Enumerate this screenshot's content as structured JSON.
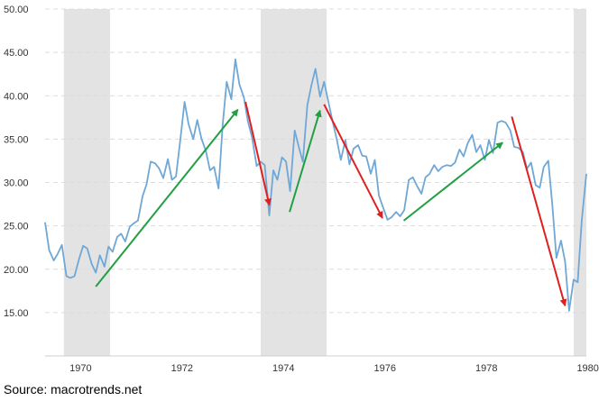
{
  "chart_data": {
    "type": "line",
    "x_unit": "year",
    "xlim": [
      1969.3,
      1979.97
    ],
    "ylim": [
      10,
      50
    ],
    "grid": true,
    "x_ticks": [
      {
        "value": 1970,
        "label": "1970"
      },
      {
        "value": 1972,
        "label": "1972"
      },
      {
        "value": 1974,
        "label": "1974"
      },
      {
        "value": 1976,
        "label": "1976"
      },
      {
        "value": 1978,
        "label": "1978"
      },
      {
        "value": 1980,
        "label": "1980"
      }
    ],
    "y_ticks": [
      {
        "value": 15,
        "label": "15.00"
      },
      {
        "value": 20,
        "label": "20.00"
      },
      {
        "value": 25,
        "label": "25.00"
      },
      {
        "value": 30,
        "label": "30.00"
      },
      {
        "value": 35,
        "label": "35.00"
      },
      {
        "value": 40,
        "label": "40.00"
      },
      {
        "value": 45,
        "label": "45.00"
      },
      {
        "value": 50,
        "label": "50.00"
      }
    ],
    "shaded_periods": [
      {
        "start": 1969.67,
        "end": 1970.58
      },
      {
        "start": 1973.55,
        "end": 1974.85
      },
      {
        "start": 1979.72,
        "end": 1979.97
      }
    ],
    "series": [
      {
        "color": "#6fa7d6",
        "points": [
          [
            1969.3,
            25.4
          ],
          [
            1969.38,
            22.2
          ],
          [
            1969.47,
            21.0
          ],
          [
            1969.55,
            21.8
          ],
          [
            1969.63,
            22.8
          ],
          [
            1969.72,
            19.2
          ],
          [
            1969.8,
            19.0
          ],
          [
            1969.88,
            19.2
          ],
          [
            1969.97,
            21.2
          ],
          [
            1970.05,
            22.7
          ],
          [
            1970.13,
            22.4
          ],
          [
            1970.22,
            20.6
          ],
          [
            1970.3,
            19.6
          ],
          [
            1970.38,
            21.6
          ],
          [
            1970.47,
            20.3
          ],
          [
            1970.55,
            22.6
          ],
          [
            1970.63,
            22.0
          ],
          [
            1970.72,
            23.7
          ],
          [
            1970.8,
            24.1
          ],
          [
            1970.88,
            23.2
          ],
          [
            1970.97,
            24.9
          ],
          [
            1971.05,
            25.3
          ],
          [
            1971.13,
            25.6
          ],
          [
            1971.22,
            28.4
          ],
          [
            1971.3,
            29.8
          ],
          [
            1971.38,
            32.4
          ],
          [
            1971.47,
            32.2
          ],
          [
            1971.55,
            31.6
          ],
          [
            1971.63,
            30.5
          ],
          [
            1971.72,
            32.7
          ],
          [
            1971.8,
            30.3
          ],
          [
            1971.88,
            30.7
          ],
          [
            1971.97,
            35.1
          ],
          [
            1972.05,
            39.3
          ],
          [
            1972.13,
            36.7
          ],
          [
            1972.22,
            35.0
          ],
          [
            1972.3,
            37.2
          ],
          [
            1972.38,
            35.1
          ],
          [
            1972.47,
            33.6
          ],
          [
            1972.55,
            31.4
          ],
          [
            1972.63,
            31.8
          ],
          [
            1972.72,
            29.3
          ],
          [
            1972.8,
            36.6
          ],
          [
            1972.88,
            41.6
          ],
          [
            1972.97,
            39.6
          ],
          [
            1973.05,
            44.2
          ],
          [
            1973.13,
            41.3
          ],
          [
            1973.22,
            39.8
          ],
          [
            1973.3,
            37.0
          ],
          [
            1973.38,
            35.2
          ],
          [
            1973.47,
            31.9
          ],
          [
            1973.55,
            32.4
          ],
          [
            1973.63,
            32.0
          ],
          [
            1973.72,
            26.2
          ],
          [
            1973.8,
            31.4
          ],
          [
            1973.88,
            30.3
          ],
          [
            1973.97,
            32.9
          ],
          [
            1974.05,
            32.4
          ],
          [
            1974.13,
            29.0
          ],
          [
            1974.22,
            36.0
          ],
          [
            1974.3,
            34.1
          ],
          [
            1974.38,
            32.4
          ],
          [
            1974.47,
            38.9
          ],
          [
            1974.55,
            41.2
          ],
          [
            1974.63,
            43.1
          ],
          [
            1974.72,
            39.9
          ],
          [
            1974.8,
            41.6
          ],
          [
            1974.88,
            39.4
          ],
          [
            1974.97,
            37.0
          ],
          [
            1975.05,
            35.0
          ],
          [
            1975.13,
            32.6
          ],
          [
            1975.22,
            34.9
          ],
          [
            1975.3,
            32.1
          ],
          [
            1975.38,
            33.9
          ],
          [
            1975.47,
            34.3
          ],
          [
            1975.55,
            33.1
          ],
          [
            1975.63,
            33.0
          ],
          [
            1975.72,
            31.0
          ],
          [
            1975.8,
            32.6
          ],
          [
            1975.88,
            28.5
          ],
          [
            1975.97,
            27.0
          ],
          [
            1976.05,
            25.7
          ],
          [
            1976.13,
            26.0
          ],
          [
            1976.22,
            26.6
          ],
          [
            1976.3,
            26.1
          ],
          [
            1976.38,
            26.8
          ],
          [
            1976.47,
            30.3
          ],
          [
            1976.55,
            30.6
          ],
          [
            1976.63,
            29.6
          ],
          [
            1976.72,
            28.7
          ],
          [
            1976.8,
            30.6
          ],
          [
            1976.88,
            31.0
          ],
          [
            1976.97,
            32.0
          ],
          [
            1977.05,
            31.3
          ],
          [
            1977.13,
            31.8
          ],
          [
            1977.22,
            32.0
          ],
          [
            1977.3,
            31.9
          ],
          [
            1977.38,
            32.3
          ],
          [
            1977.47,
            33.8
          ],
          [
            1977.55,
            33.0
          ],
          [
            1977.63,
            34.5
          ],
          [
            1977.72,
            35.5
          ],
          [
            1977.8,
            33.5
          ],
          [
            1977.88,
            34.3
          ],
          [
            1977.97,
            32.6
          ],
          [
            1978.05,
            34.9
          ],
          [
            1978.13,
            33.4
          ],
          [
            1978.22,
            36.9
          ],
          [
            1978.3,
            37.1
          ],
          [
            1978.38,
            36.9
          ],
          [
            1978.47,
            36.0
          ],
          [
            1978.55,
            34.1
          ],
          [
            1978.63,
            34.0
          ],
          [
            1978.72,
            33.5
          ],
          [
            1978.8,
            31.6
          ],
          [
            1978.88,
            32.3
          ],
          [
            1978.97,
            29.7
          ],
          [
            1979.05,
            29.4
          ],
          [
            1979.13,
            31.8
          ],
          [
            1979.22,
            32.5
          ],
          [
            1979.3,
            27.4
          ],
          [
            1979.38,
            21.3
          ],
          [
            1979.47,
            23.3
          ],
          [
            1979.55,
            20.9
          ],
          [
            1979.63,
            15.2
          ],
          [
            1979.72,
            18.8
          ],
          [
            1979.8,
            18.5
          ],
          [
            1979.88,
            25.6
          ],
          [
            1979.97,
            31.0
          ]
        ]
      }
    ],
    "annotations": [
      {
        "color": "#21a043",
        "from": [
          1970.3,
          18.0
        ],
        "to": [
          1973.1,
          38.4
        ]
      },
      {
        "color": "#e02020",
        "from": [
          1973.25,
          39.3
        ],
        "to": [
          1973.72,
          27.4
        ]
      },
      {
        "color": "#21a043",
        "from": [
          1974.12,
          26.6
        ],
        "to": [
          1974.72,
          38.3
        ]
      },
      {
        "color": "#e02020",
        "from": [
          1974.8,
          39.0
        ],
        "to": [
          1975.95,
          25.9
        ]
      },
      {
        "color": "#21a043",
        "from": [
          1976.37,
          25.6
        ],
        "to": [
          1978.32,
          34.6
        ]
      },
      {
        "color": "#e02020",
        "from": [
          1978.5,
          37.6
        ],
        "to": [
          1979.55,
          15.8
        ]
      }
    ]
  },
  "source_text": "Source: macrotrends.net"
}
